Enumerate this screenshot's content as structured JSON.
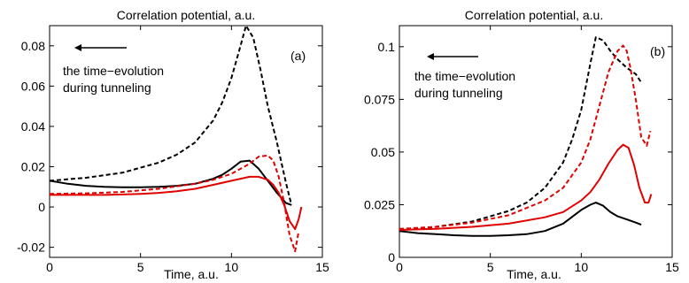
{
  "chart_data": [
    {
      "type": "line",
      "title": "Correlation potential, a.u.",
      "panel_tag": "(a)",
      "xlabel": "Time, a.u.",
      "ylabel": "",
      "xlim": [
        0,
        15
      ],
      "ylim": [
        -0.025,
        0.09
      ],
      "x_ticks": [
        0,
        5,
        10,
        15
      ],
      "x_tick_labels": [
        "0",
        "5",
        "10",
        "15"
      ],
      "y_ticks": [
        -0.02,
        0,
        0.02,
        0.04,
        0.06,
        0.08
      ],
      "y_tick_labels": [
        "-0.02",
        "0",
        "0.02",
        "0.04",
        "0.06",
        "0.08"
      ],
      "annotation": [
        "the time−evolution",
        "during tunneling"
      ],
      "arrow_direction": "left",
      "grid": false,
      "series": [
        {
          "color": "#000000",
          "dash": "dashed",
          "x": [
            0,
            2,
            4,
            6,
            7,
            8,
            9,
            9.5,
            10,
            10.5,
            10.8,
            11.2,
            11.6,
            12,
            12.5,
            13,
            13.3
          ],
          "y": [
            0.013,
            0.0145,
            0.017,
            0.022,
            0.026,
            0.032,
            0.043,
            0.052,
            0.064,
            0.08,
            0.09,
            0.084,
            0.068,
            0.05,
            0.032,
            0.012,
            0.001
          ]
        },
        {
          "color": "#000000",
          "dash": "solid",
          "x": [
            0,
            1,
            2,
            3,
            4,
            5,
            6,
            7,
            8,
            9,
            9.5,
            10,
            10.5,
            11,
            11.5,
            12,
            12.5,
            13,
            13.3
          ],
          "y": [
            0.013,
            0.0115,
            0.0105,
            0.01,
            0.0098,
            0.0098,
            0.01,
            0.0105,
            0.0115,
            0.014,
            0.016,
            0.019,
            0.0225,
            0.023,
            0.019,
            0.013,
            0.007,
            0.002,
            0.001
          ]
        },
        {
          "color": "#e00000",
          "dash": "dashed",
          "x": [
            0,
            2,
            4,
            6,
            8,
            9,
            10,
            11,
            11.5,
            12,
            12.3,
            12.6,
            12.9,
            13.2,
            13.5,
            13.7
          ],
          "y": [
            0.0065,
            0.0068,
            0.0075,
            0.009,
            0.0115,
            0.0135,
            0.0165,
            0.0215,
            0.025,
            0.0255,
            0.023,
            0.015,
            0.002,
            -0.014,
            -0.022,
            -0.012
          ]
        },
        {
          "color": "#e00000",
          "dash": "solid",
          "x": [
            0,
            1,
            2,
            3,
            4,
            5,
            6,
            7,
            8,
            9,
            10,
            10.5,
            11,
            11.5,
            12,
            12.3,
            12.6,
            12.9,
            13.2,
            13.5,
            13.7,
            13.85
          ],
          "y": [
            0.006,
            0.006,
            0.006,
            0.006,
            0.0062,
            0.0065,
            0.007,
            0.0078,
            0.009,
            0.011,
            0.013,
            0.014,
            0.015,
            0.015,
            0.0135,
            0.011,
            0.007,
            0.001,
            -0.007,
            -0.011,
            -0.006,
            0.0
          ]
        }
      ]
    },
    {
      "type": "line",
      "title": "Correlation potential, a.u.",
      "panel_tag": "(b)",
      "xlabel": "Time, a.u.",
      "ylabel": "",
      "xlim": [
        0,
        15
      ],
      "ylim": [
        0,
        0.11
      ],
      "x_ticks": [
        0,
        5,
        10,
        15
      ],
      "x_tick_labels": [
        "0",
        "5",
        "10",
        "15"
      ],
      "y_ticks": [
        0,
        0.025,
        0.05,
        0.075,
        0.1
      ],
      "y_tick_labels": [
        "0",
        "0.025",
        "0.05",
        "0.075",
        "0.1"
      ],
      "annotation": [
        "the time−evolution",
        "during tunneling"
      ],
      "arrow_direction": "left",
      "grid": false,
      "series": [
        {
          "color": "#000000",
          "dash": "dashed",
          "x": [
            0,
            2,
            4,
            6,
            7,
            8,
            9,
            9.5,
            10,
            10.5,
            10.8,
            11.2,
            11.6,
            12,
            12.5,
            13,
            13.3
          ],
          "y": [
            0.013,
            0.0145,
            0.017,
            0.022,
            0.026,
            0.033,
            0.045,
            0.056,
            0.07,
            0.092,
            0.1045,
            0.103,
            0.098,
            0.094,
            0.09,
            0.087,
            0.083
          ]
        },
        {
          "color": "#000000",
          "dash": "solid",
          "x": [
            0,
            1,
            2,
            3,
            4,
            5,
            6,
            7,
            8,
            9,
            10,
            10.5,
            10.8,
            11.2,
            11.6,
            12,
            12.5,
            13,
            13.3
          ],
          "y": [
            0.0125,
            0.0115,
            0.011,
            0.0105,
            0.0102,
            0.0102,
            0.0105,
            0.011,
            0.0125,
            0.016,
            0.0225,
            0.025,
            0.026,
            0.0245,
            0.0215,
            0.0195,
            0.018,
            0.0165,
            0.0155
          ]
        },
        {
          "color": "#e00000",
          "dash": "dashed",
          "x": [
            0,
            2,
            4,
            6,
            8,
            9,
            10,
            10.5,
            11,
            11.5,
            12,
            12.3,
            12.5,
            12.7,
            13,
            13.3,
            13.6,
            13.8
          ],
          "y": [
            0.0135,
            0.0145,
            0.0165,
            0.02,
            0.027,
            0.033,
            0.045,
            0.056,
            0.072,
            0.088,
            0.098,
            0.1005,
            0.098,
            0.09,
            0.075,
            0.057,
            0.053,
            0.06
          ]
        },
        {
          "color": "#e00000",
          "dash": "solid",
          "x": [
            0,
            2,
            4,
            6,
            8,
            9,
            10,
            10.5,
            11,
            11.5,
            12,
            12.3,
            12.6,
            12.9,
            13.2,
            13.5,
            13.7,
            13.85
          ],
          "y": [
            0.013,
            0.0135,
            0.0145,
            0.016,
            0.019,
            0.0215,
            0.027,
            0.031,
            0.037,
            0.0445,
            0.051,
            0.0535,
            0.052,
            0.044,
            0.033,
            0.026,
            0.026,
            0.03
          ]
        }
      ]
    }
  ]
}
